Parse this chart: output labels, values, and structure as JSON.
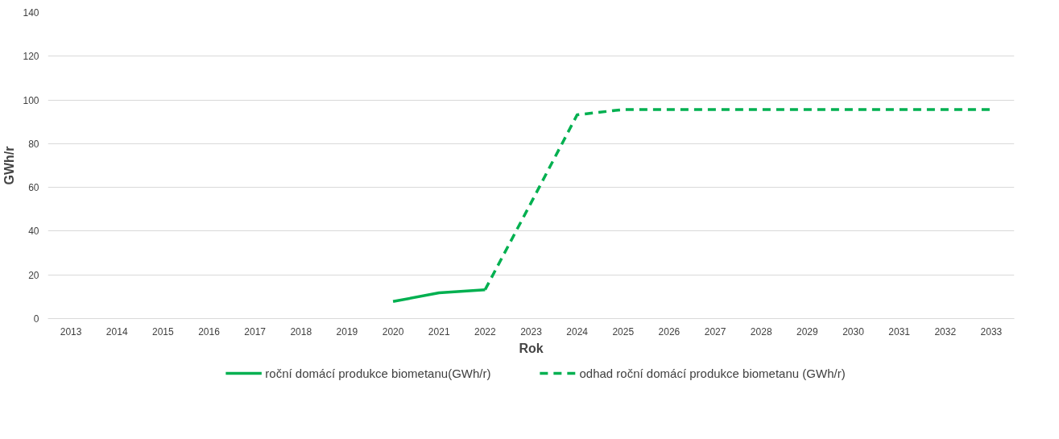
{
  "chart_data": {
    "type": "line",
    "xlabel": "Rok",
    "ylabel": "GWh/r",
    "categories": [
      "2013",
      "2014",
      "2015",
      "2016",
      "2017",
      "2018",
      "2019",
      "2020",
      "2021",
      "2022",
      "2023",
      "2024",
      "2025",
      "2026",
      "2027",
      "2028",
      "2029",
      "2030",
      "2031",
      "2032",
      "2033"
    ],
    "series": [
      {
        "name": "roční domácí produkce biometanu(GWh/r)",
        "color": "#00b050",
        "line_style": "solid",
        "values": [
          null,
          null,
          null,
          null,
          null,
          null,
          null,
          7.8,
          11.8,
          13.2,
          null,
          null,
          null,
          null,
          null,
          null,
          null,
          null,
          null,
          null,
          null
        ]
      },
      {
        "name": "odhad roční domácí produkce biometanu (GWh/r)",
        "color": "#00b050",
        "line_style": "dashed",
        "values": [
          null,
          null,
          null,
          null,
          null,
          null,
          null,
          null,
          null,
          13.2,
          53,
          93.2,
          95.6,
          95.6,
          95.6,
          95.6,
          95.6,
          95.6,
          95.6,
          95.6,
          95.6
        ]
      }
    ],
    "ylim": [
      0,
      140
    ],
    "yticks": [
      0,
      20,
      40,
      60,
      80,
      100,
      120,
      140
    ],
    "grid": "y",
    "legend": "bottom"
  }
}
